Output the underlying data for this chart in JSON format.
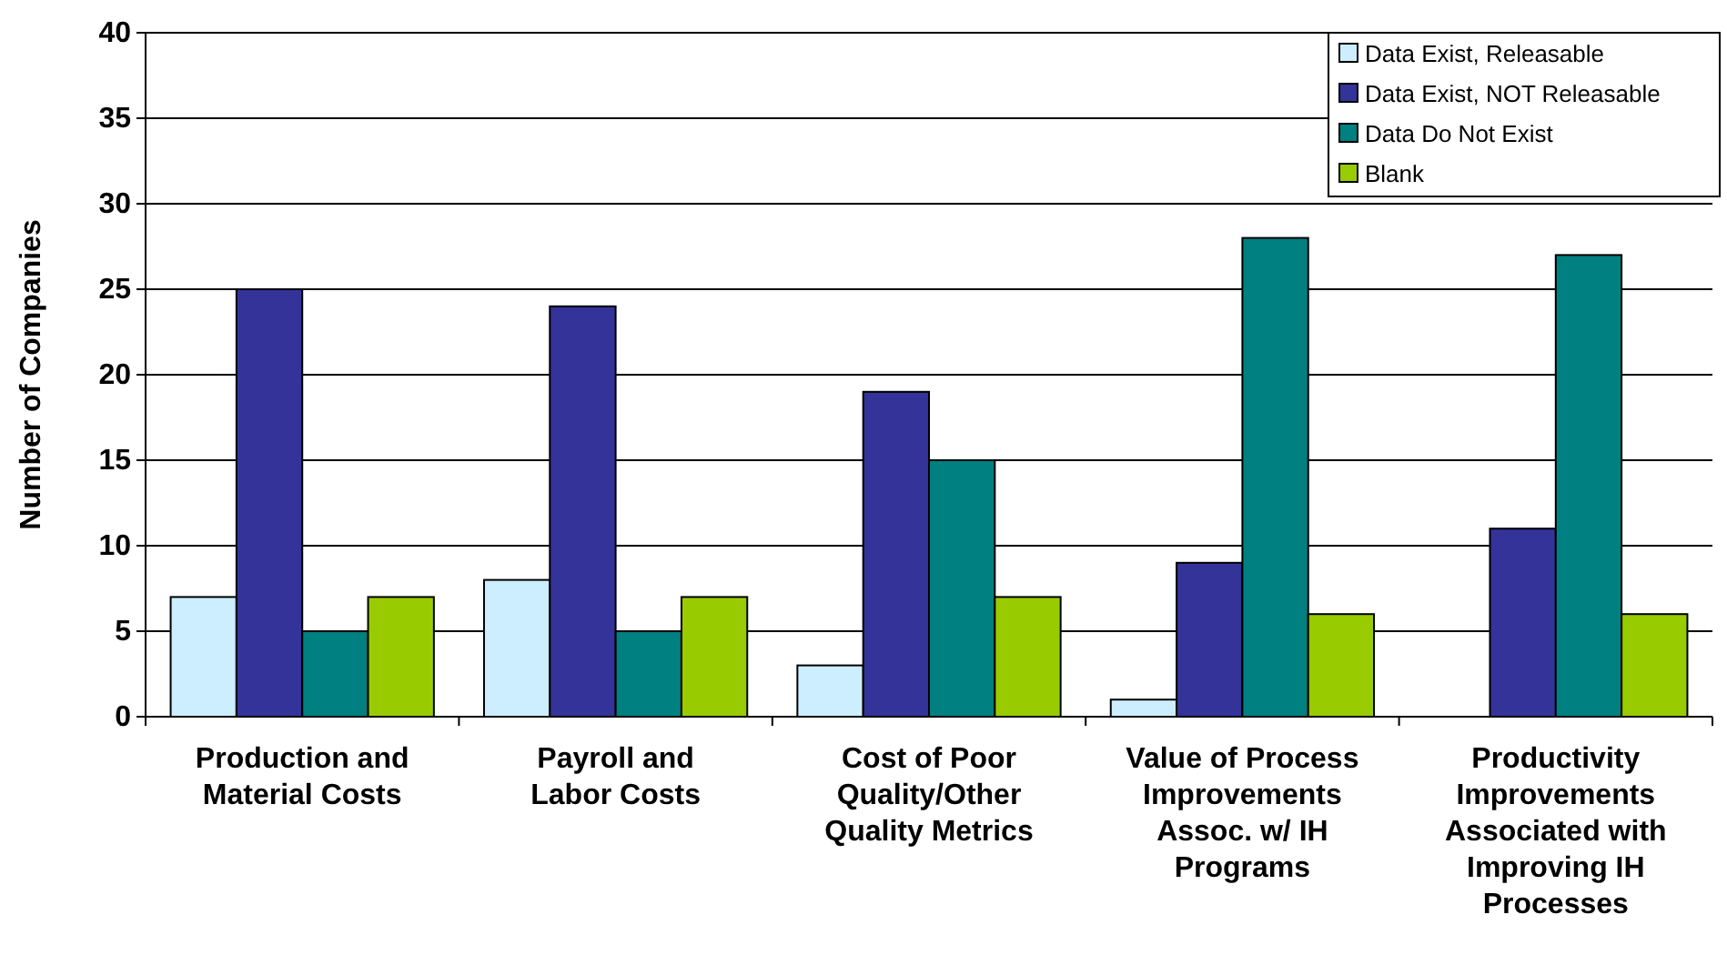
{
  "chart_data": {
    "type": "bar",
    "ylabel": "Number of Companies",
    "categories": [
      "Production and\nMaterial Costs",
      "Payroll and\nLabor Costs",
      "Cost of Poor\nQuality/Other\nQuality Metrics",
      "Value of Process\nImprovements\nAssoc. w/ IH\nPrograms",
      "Productivity\nImprovements\nAssociated with\nImproving IH\nProcesses"
    ],
    "series": [
      {
        "name": "Data Exist, Releasable",
        "color": "#cceeff",
        "values": [
          7,
          8,
          3,
          1,
          0
        ]
      },
      {
        "name": "Data Exist, NOT Releasable",
        "color": "#333399",
        "values": [
          25,
          24,
          19,
          9,
          11
        ]
      },
      {
        "name": "Data Do Not Exist",
        "color": "#008080",
        "values": [
          5,
          5,
          15,
          28,
          27
        ]
      },
      {
        "name": "Blank",
        "color": "#99cc00",
        "values": [
          7,
          7,
          7,
          6,
          6
        ]
      }
    ],
    "ylim": [
      0,
      40
    ],
    "yticks": [
      0,
      5,
      10,
      15,
      20,
      25,
      30,
      35,
      40
    ],
    "grid": "y",
    "legend": "top right"
  }
}
